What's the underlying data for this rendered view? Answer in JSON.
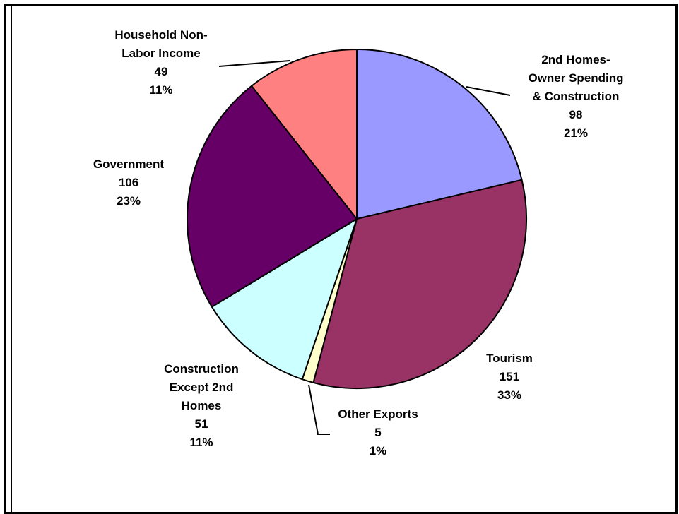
{
  "chart_data": {
    "type": "pie",
    "title": "",
    "start_angle_deg": 90,
    "direction": "clockwise",
    "slices": [
      {
        "name": "2nd Homes-Owner Spending & Construction",
        "label_lines": [
          "2nd Homes-",
          "Owner Spending",
          "& Construction",
          "98",
          "21%"
        ],
        "value": 98,
        "percent": 21,
        "color": "#9999ff"
      },
      {
        "name": "Tourism",
        "label_lines": [
          "Tourism",
          "151",
          "33%"
        ],
        "value": 151,
        "percent": 33,
        "color": "#993366"
      },
      {
        "name": "Other Exports",
        "label_lines": [
          "Other Exports",
          "5",
          "1%"
        ],
        "value": 5,
        "percent": 1,
        "color": "#ffffcc"
      },
      {
        "name": "Construction Except 2nd Homes",
        "label_lines": [
          "Construction",
          "Except 2nd",
          "Homes",
          "51",
          "11%"
        ],
        "value": 51,
        "percent": 11,
        "color": "#ccffff"
      },
      {
        "name": "Government",
        "label_lines": [
          "Government",
          "106",
          "23%"
        ],
        "value": 106,
        "percent": 23,
        "color": "#660066"
      },
      {
        "name": "Household Non-Labor Income",
        "label_lines": [
          "Household Non-",
          "Labor Income",
          "49",
          "11%"
        ],
        "value": 49,
        "percent": 11,
        "color": "#ff8080"
      }
    ]
  }
}
